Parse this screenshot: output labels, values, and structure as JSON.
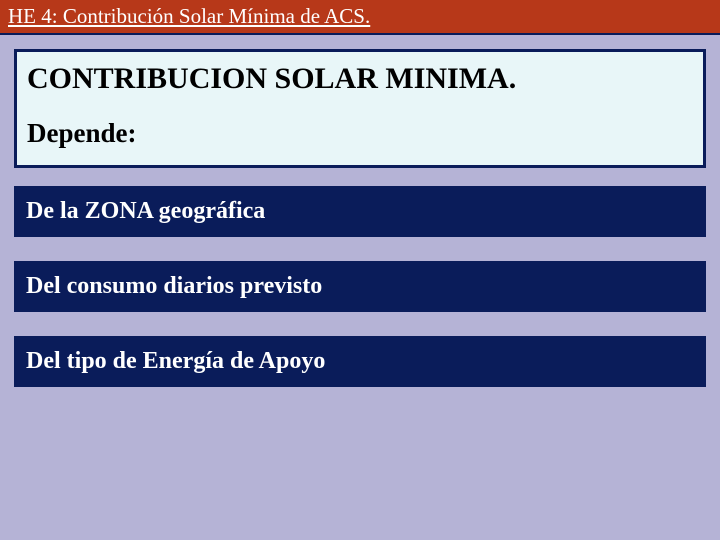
{
  "header": {
    "title": "HE 4: Contribución Solar Mínima de ACS."
  },
  "main": {
    "title": "CONTRIBUCION SOLAR MINIMA.",
    "subtitle": "Depende:"
  },
  "items": [
    {
      "label": "De la ZONA geográfica"
    },
    {
      "label": "Del consumo diarios previsto"
    },
    {
      "label": "Del tipo de Energía de Apoyo"
    }
  ],
  "colors": {
    "page_background": "#b5b3d6",
    "header_background": "#b73819",
    "header_text": "#ffffff",
    "box_border": "#0a1c5a",
    "main_box_background": "#e8f6f8",
    "item_background": "#0a1c5a",
    "item_text": "#ffffff",
    "main_text": "#000000"
  },
  "typography": {
    "font_family": "Times New Roman, serif",
    "header_fontsize": 21,
    "main_title_fontsize": 30,
    "main_sub_fontsize": 27,
    "item_fontsize": 24
  }
}
